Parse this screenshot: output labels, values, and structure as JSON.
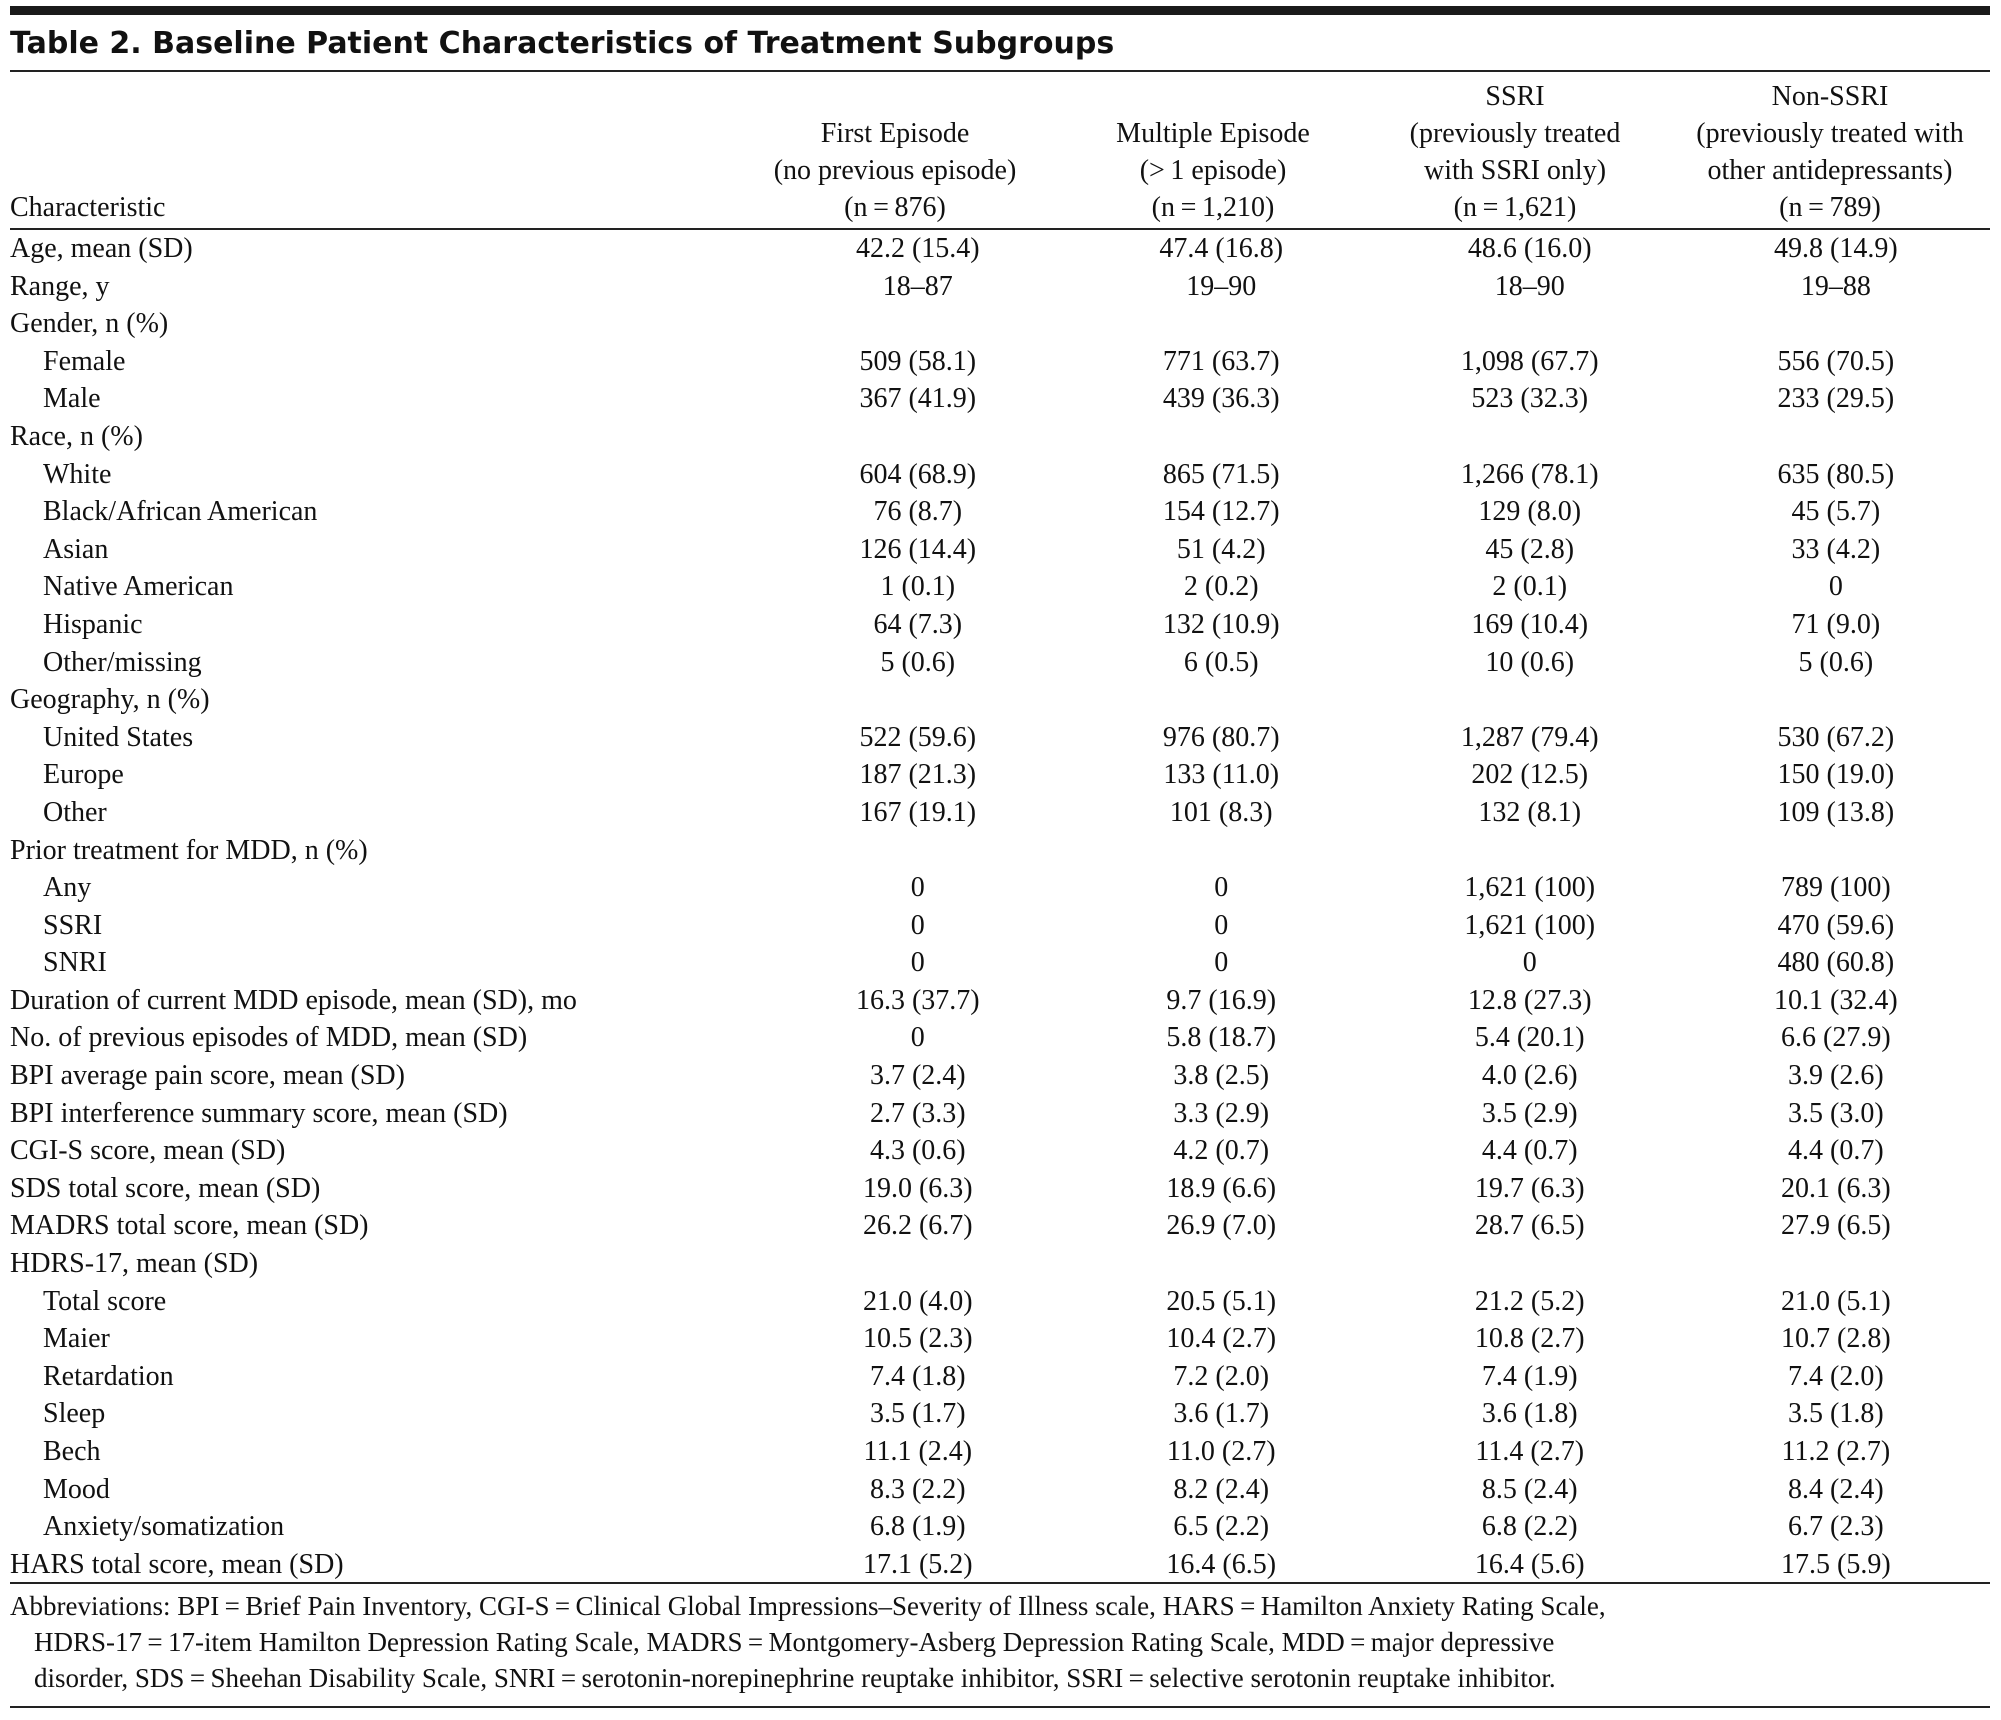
{
  "title": "Table 2. Baseline Patient Characteristics of Treatment Subgroups",
  "header": {
    "characteristic": "Characteristic",
    "columns": [
      {
        "lines": [
          "First Episode",
          "(no previous episode)",
          "(n = 876)"
        ]
      },
      {
        "lines": [
          "Multiple Episode",
          "(> 1 episode)",
          "(n = 1,210)"
        ]
      },
      {
        "lines": [
          "SSRI",
          "(previously treated",
          "with SSRI only)",
          "(n = 1,621)"
        ]
      },
      {
        "lines": [
          "Non-SSRI",
          "(previously treated with",
          "other antidepressants)",
          "(n = 789)"
        ]
      }
    ]
  },
  "rows": [
    {
      "label": "Age, mean (SD)",
      "values": [
        "42.2 (15.4)",
        "47.4 (16.8)",
        "48.6 (16.0)",
        "49.8 (14.9)"
      ]
    },
    {
      "label": "Range, y",
      "values": [
        "18–87",
        "19–90",
        "18–90",
        "19–88"
      ]
    },
    {
      "label": "Gender, n (%)",
      "values": [
        "",
        "",
        "",
        ""
      ]
    },
    {
      "label": "Female",
      "values": [
        "509 (58.1)",
        "771 (63.7)",
        "1,098 (67.7)",
        "556 (70.5)"
      ]
    },
    {
      "label": "Male",
      "values": [
        "367 (41.9)",
        "439 (36.3)",
        "523 (32.3)",
        "233 (29.5)"
      ]
    },
    {
      "label": "Race, n (%)",
      "values": [
        "",
        "",
        "",
        ""
      ]
    },
    {
      "label": "White",
      "values": [
        "604 (68.9)",
        "865 (71.5)",
        "1,266 (78.1)",
        "635 (80.5)"
      ]
    },
    {
      "label": "Black/African American",
      "values": [
        "76 (8.7)",
        "154 (12.7)",
        "129 (8.0)",
        "45 (5.7)"
      ]
    },
    {
      "label": "Asian",
      "values": [
        "126 (14.4)",
        "51 (4.2)",
        "45 (2.8)",
        "33 (4.2)"
      ]
    },
    {
      "label": "Native American",
      "values": [
        "1 (0.1)",
        "2 (0.2)",
        "2 (0.1)",
        "0"
      ]
    },
    {
      "label": "Hispanic",
      "values": [
        "64 (7.3)",
        "132 (10.9)",
        "169 (10.4)",
        "71 (9.0)"
      ]
    },
    {
      "label": "Other/missing",
      "values": [
        "5 (0.6)",
        "6 (0.5)",
        "10 (0.6)",
        "5 (0.6)"
      ]
    },
    {
      "label": "Geography, n (%)",
      "values": [
        "",
        "",
        "",
        ""
      ]
    },
    {
      "label": "United States",
      "values": [
        "522 (59.6)",
        "976 (80.7)",
        "1,287 (79.4)",
        "530 (67.2)"
      ]
    },
    {
      "label": "Europe",
      "values": [
        "187 (21.3)",
        "133 (11.0)",
        "202 (12.5)",
        "150 (19.0)"
      ]
    },
    {
      "label": "Other",
      "values": [
        "167 (19.1)",
        "101 (8.3)",
        "132 (8.1)",
        "109 (13.8)"
      ]
    },
    {
      "label": "Prior treatment for MDD, n (%)",
      "values": [
        "",
        "",
        "",
        ""
      ]
    },
    {
      "label": "Any",
      "values": [
        "0",
        "0",
        "1,621 (100)",
        "789 (100)"
      ]
    },
    {
      "label": "SSRI",
      "values": [
        "0",
        "0",
        "1,621 (100)",
        "470 (59.6)"
      ]
    },
    {
      "label": "SNRI",
      "values": [
        "0",
        "0",
        "0",
        "480 (60.8)"
      ]
    },
    {
      "label": "Duration of current MDD episode, mean (SD), mo",
      "values": [
        "16.3 (37.7)",
        "9.7 (16.9)",
        "12.8 (27.3)",
        "10.1 (32.4)"
      ]
    },
    {
      "label": "No. of previous episodes of MDD, mean (SD)",
      "values": [
        "0",
        "5.8 (18.7)",
        "5.4 (20.1)",
        "6.6 (27.9)"
      ]
    },
    {
      "label": "BPI average pain score, mean (SD)",
      "values": [
        "3.7 (2.4)",
        "3.8 (2.5)",
        "4.0 (2.6)",
        "3.9 (2.6)"
      ]
    },
    {
      "label": "BPI interference summary score, mean (SD)",
      "values": [
        "2.7 (3.3)",
        "3.3 (2.9)",
        "3.5 (2.9)",
        "3.5 (3.0)"
      ]
    },
    {
      "label": "CGI-S score, mean (SD)",
      "values": [
        "4.3 (0.6)",
        "4.2 (0.7)",
        "4.4 (0.7)",
        "4.4 (0.7)"
      ]
    },
    {
      "label": "SDS total score, mean (SD)",
      "values": [
        "19.0 (6.3)",
        "18.9 (6.6)",
        "19.7 (6.3)",
        "20.1 (6.3)"
      ]
    },
    {
      "label": "MADRS total score, mean (SD)",
      "values": [
        "26.2 (6.7)",
        "26.9 (7.0)",
        "28.7 (6.5)",
        "27.9 (6.5)"
      ]
    },
    {
      "label": "HDRS-17, mean (SD)",
      "values": [
        "",
        "",
        "",
        ""
      ]
    },
    {
      "label": "Total score",
      "values": [
        "21.0 (4.0)",
        "20.5 (5.1)",
        "21.2 (5.2)",
        "21.0 (5.1)"
      ]
    },
    {
      "label": "Maier",
      "values": [
        "10.5 (2.3)",
        "10.4 (2.7)",
        "10.8 (2.7)",
        "10.7 (2.8)"
      ]
    },
    {
      "label": "Retardation",
      "values": [
        "7.4 (1.8)",
        "7.2 (2.0)",
        "7.4 (1.9)",
        "7.4 (2.0)"
      ]
    },
    {
      "label": "Sleep",
      "values": [
        "3.5 (1.7)",
        "3.6 (1.7)",
        "3.6 (1.8)",
        "3.5 (1.8)"
      ]
    },
    {
      "label": "Bech",
      "values": [
        "11.1 (2.4)",
        "11.0 (2.7)",
        "11.4 (2.7)",
        "11.2 (2.7)"
      ]
    },
    {
      "label": "Mood",
      "values": [
        "8.3 (2.2)",
        "8.2 (2.4)",
        "8.5 (2.4)",
        "8.4 (2.4)"
      ]
    },
    {
      "label": "Anxiety/somatization",
      "values": [
        "6.8 (1.9)",
        "6.5 (2.2)",
        "6.8 (2.2)",
        "6.7 (2.3)"
      ]
    },
    {
      "label": "HARS total score, mean (SD)",
      "values": [
        "17.1 (5.2)",
        "16.4 (6.5)",
        "16.4 (5.6)",
        "17.5 (5.9)"
      ]
    }
  ],
  "footnote": {
    "lines": [
      "Abbreviations: BPI = Brief Pain Inventory, CGI-S = Clinical Global Impressions–Severity of Illness scale, HARS = Hamilton Anxiety Rating Scale,",
      "HDRS-17 = 17-item Hamilton Depression Rating Scale, MADRS = Montgomery-Asberg Depression Rating Scale, MDD = major depressive",
      "disorder, SDS = Sheehan Disability Scale, SNRI = serotonin-norepinephrine reuptake inhibitor, SSRI = selective serotonin reuptake inhibitor."
    ]
  }
}
